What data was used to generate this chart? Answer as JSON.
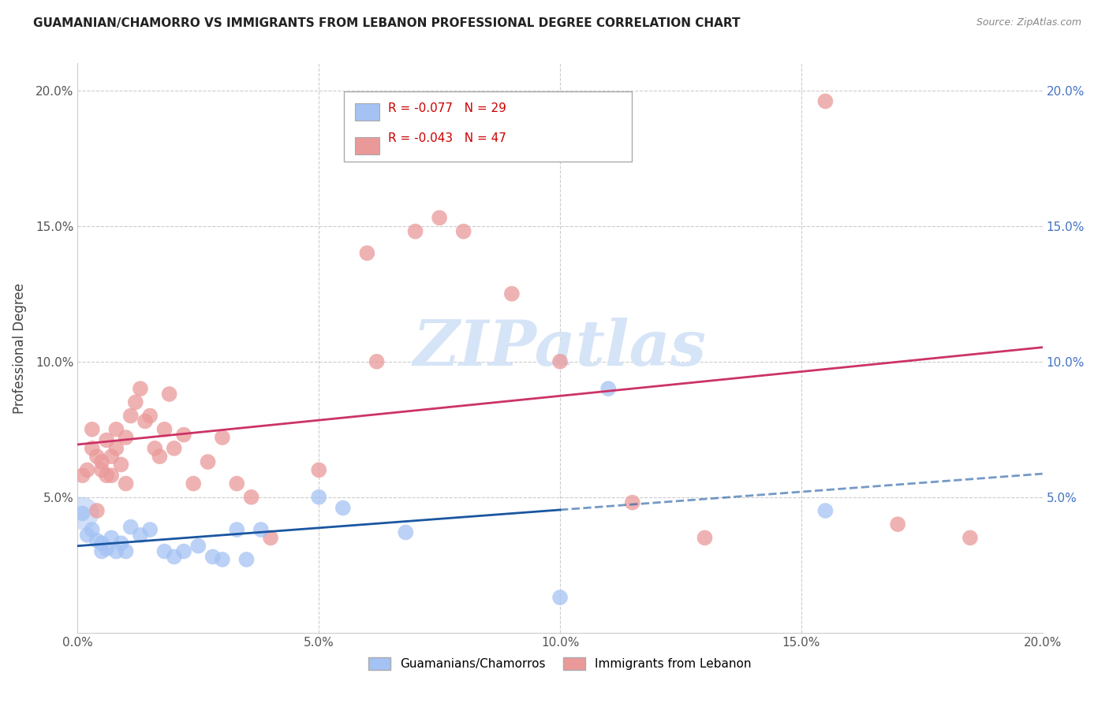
{
  "title": "GUAMANIAN/CHAMORRO VS IMMIGRANTS FROM LEBANON PROFESSIONAL DEGREE CORRELATION CHART",
  "source": "Source: ZipAtlas.com",
  "ylabel": "Professional Degree",
  "xlabel": "",
  "xlim": [
    0.0,
    0.2
  ],
  "ylim": [
    0.0,
    0.21
  ],
  "xticks": [
    0.0,
    0.05,
    0.1,
    0.15,
    0.2
  ],
  "yticks": [
    0.0,
    0.05,
    0.1,
    0.15,
    0.2
  ],
  "xticklabels": [
    "0.0%",
    "5.0%",
    "10.0%",
    "15.0%",
    "20.0%"
  ],
  "yticklabels": [
    "",
    "5.0%",
    "10.0%",
    "15.0%",
    "20.0%"
  ],
  "blue_label": "Guamanians/Chamorros",
  "pink_label": "Immigrants from Lebanon",
  "blue_R": "-0.077",
  "blue_N": "29",
  "pink_R": "-0.043",
  "pink_N": "47",
  "blue_color": "#a4c2f4",
  "pink_color": "#ea9999",
  "blue_line_color": "#1a56a0",
  "pink_line_color": "#cc3366",
  "watermark_color": "#d6e4f7",
  "background_color": "#ffffff",
  "grid_color": "#c0c0c0",
  "blue_scatter_x": [
    0.001,
    0.002,
    0.003,
    0.004,
    0.005,
    0.005,
    0.006,
    0.007,
    0.008,
    0.009,
    0.01,
    0.011,
    0.013,
    0.015,
    0.018,
    0.02,
    0.022,
    0.025,
    0.028,
    0.03,
    0.033,
    0.035,
    0.038,
    0.05,
    0.055,
    0.068,
    0.1,
    0.11,
    0.155
  ],
  "blue_scatter_y": [
    0.044,
    0.036,
    0.038,
    0.034,
    0.033,
    0.03,
    0.031,
    0.035,
    0.03,
    0.033,
    0.03,
    0.039,
    0.036,
    0.038,
    0.03,
    0.028,
    0.03,
    0.032,
    0.028,
    0.027,
    0.038,
    0.027,
    0.038,
    0.05,
    0.046,
    0.037,
    0.013,
    0.09,
    0.045
  ],
  "pink_scatter_x": [
    0.001,
    0.002,
    0.003,
    0.003,
    0.004,
    0.004,
    0.005,
    0.005,
    0.006,
    0.006,
    0.007,
    0.007,
    0.008,
    0.008,
    0.009,
    0.01,
    0.01,
    0.011,
    0.012,
    0.013,
    0.014,
    0.015,
    0.016,
    0.017,
    0.018,
    0.019,
    0.02,
    0.022,
    0.024,
    0.027,
    0.03,
    0.033,
    0.036,
    0.04,
    0.05,
    0.062,
    0.07,
    0.075,
    0.08,
    0.09,
    0.1,
    0.115,
    0.13,
    0.155,
    0.17,
    0.185,
    0.06
  ],
  "pink_scatter_y": [
    0.058,
    0.06,
    0.075,
    0.068,
    0.045,
    0.065,
    0.063,
    0.06,
    0.071,
    0.058,
    0.065,
    0.058,
    0.068,
    0.075,
    0.062,
    0.072,
    0.055,
    0.08,
    0.085,
    0.09,
    0.078,
    0.08,
    0.068,
    0.065,
    0.075,
    0.088,
    0.068,
    0.073,
    0.055,
    0.063,
    0.072,
    0.055,
    0.05,
    0.035,
    0.06,
    0.1,
    0.148,
    0.153,
    0.148,
    0.125,
    0.1,
    0.048,
    0.035,
    0.196,
    0.04,
    0.035,
    0.14
  ]
}
